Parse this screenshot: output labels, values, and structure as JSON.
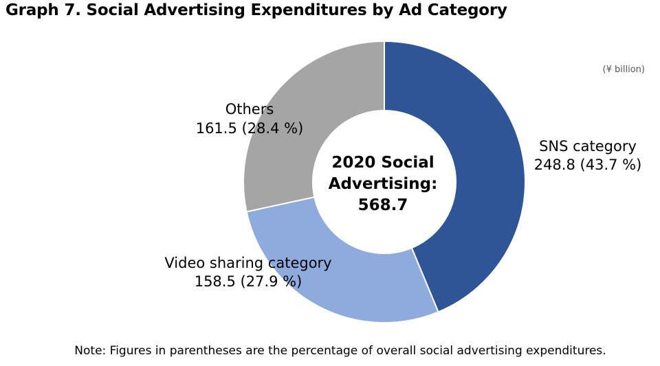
{
  "title": "Graph 7. Social Advertising Expenditures by Ad Category",
  "unit_label": "(¥ billion)",
  "note": "Note: Figures in parentheses are the percentage of overall social advertising expenditures.",
  "center_label": [
    "2020 Social",
    "Advertising:",
    "568.7"
  ],
  "chart_data": {
    "type": "pie",
    "title": "Graph 7. Social Advertising Expenditures by Ad Category",
    "total": 568.7,
    "slices": [
      {
        "name": "SNS category",
        "label": "248.8 (43.7 %)",
        "value": 248.8,
        "percent": 43.7,
        "color": "#2f5597"
      },
      {
        "name": "Video sharing category",
        "label": "158.5 (27.9 %)",
        "value": 158.5,
        "percent": 27.9,
        "color": "#8faadc"
      },
      {
        "name": "Others",
        "label": "161.5 (28.4 %)",
        "value": 161.5,
        "percent": 28.4,
        "color": "#a5a5a5"
      }
    ]
  }
}
